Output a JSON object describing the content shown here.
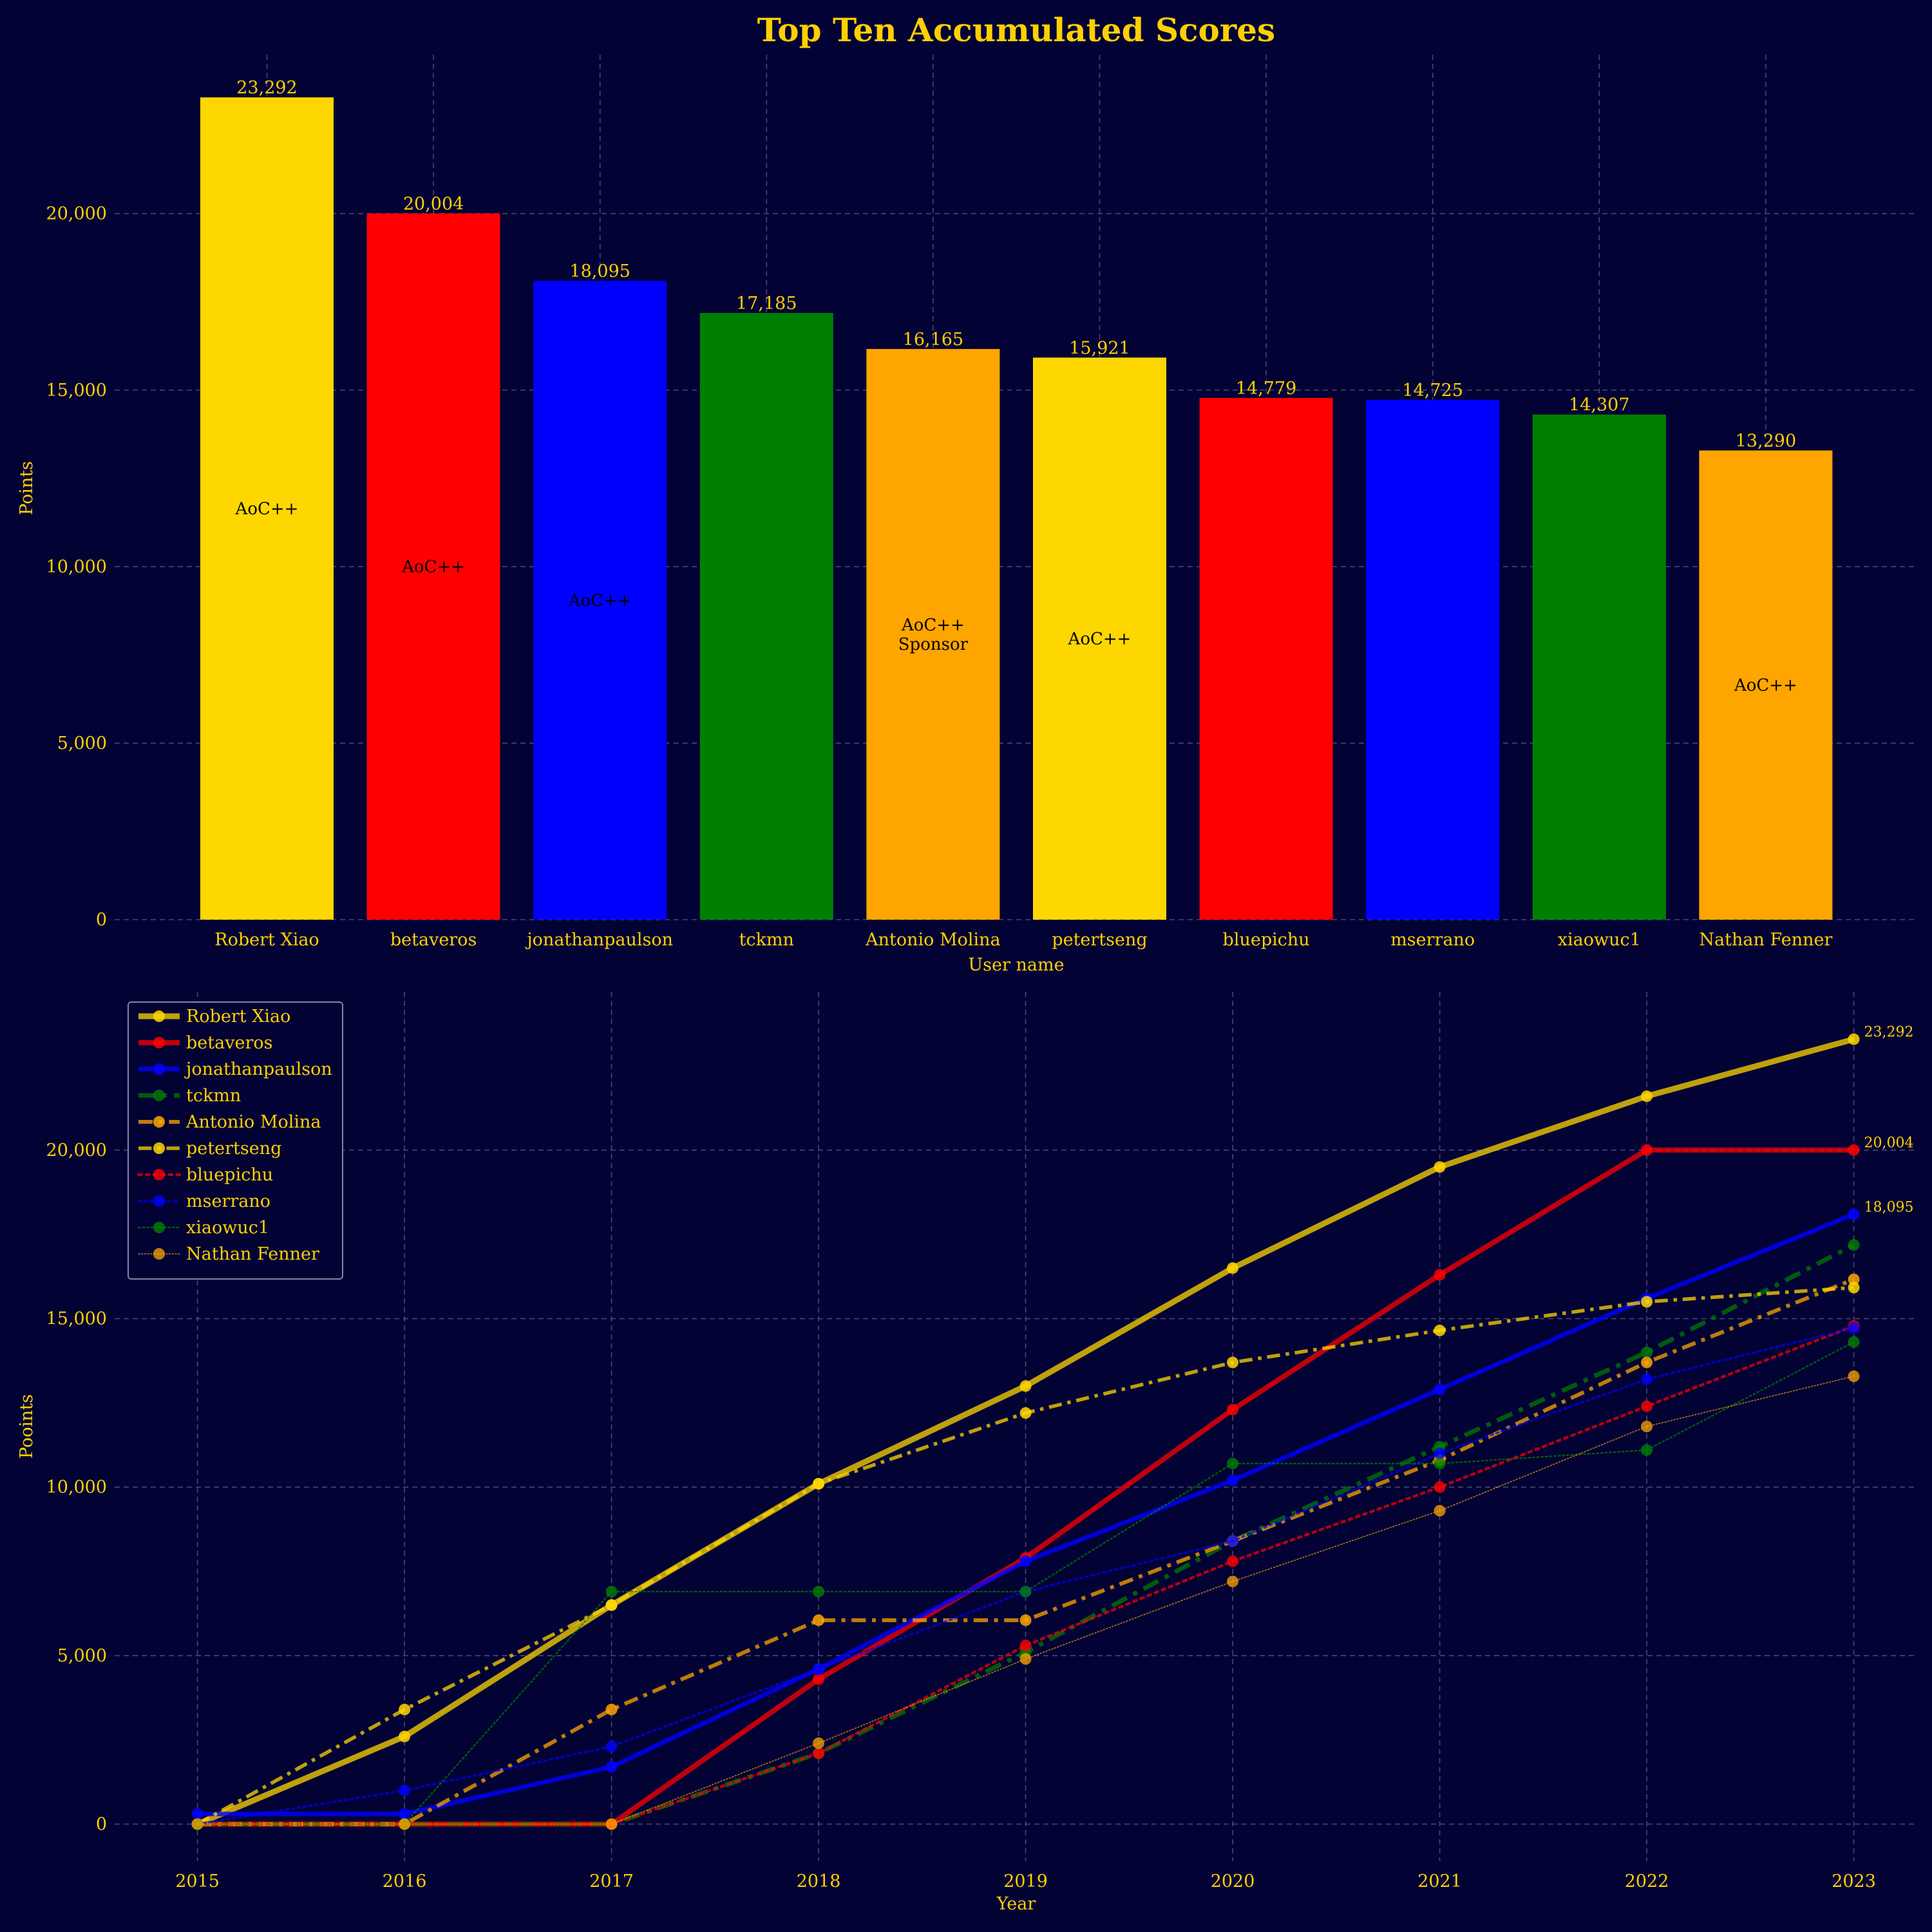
{
  "figure_title": "Top Ten Accumulated Scores",
  "colors": {
    "background": "#020235",
    "text": "#ffd000",
    "gold": "#ffd700",
    "red": "#ff0000",
    "blue": "#0000ff",
    "green": "#008000",
    "orange": "#ffa500"
  },
  "chart_data": [
    {
      "type": "bar",
      "xlabel": "User name",
      "ylabel": "Points",
      "ylim": [
        0,
        24500
      ],
      "yticks": [
        0,
        5000,
        10000,
        15000,
        20000
      ],
      "ytick_labels": [
        "0",
        "5,000",
        "10,000",
        "15,000",
        "20,000"
      ],
      "grid": true,
      "categories": [
        "Robert Xiao",
        "betaveros",
        "jonathanpaulson",
        "tckmn",
        "Antonio Molina",
        "petertseng",
        "bluepichu",
        "mserrano",
        "xiaowuc1",
        "Nathan Fenner"
      ],
      "values": [
        23292,
        20004,
        18095,
        17185,
        16165,
        15921,
        14779,
        14725,
        14307,
        13290
      ],
      "value_labels": [
        "23,292",
        "20,004",
        "18,095",
        "17,185",
        "16,165",
        "15,921",
        "14,779",
        "14,725",
        "14,307",
        "13,290"
      ],
      "bar_colors": [
        "#ffd700",
        "#ff0000",
        "#0000ff",
        "#008000",
        "#ffa500",
        "#ffd700",
        "#ff0000",
        "#0000ff",
        "#008000",
        "#ffa500"
      ],
      "bar_annotations": [
        [
          "AoC++"
        ],
        [
          "AoC++"
        ],
        [
          "AoC++"
        ],
        [],
        [
          "AoC++",
          "Sponsor"
        ],
        [
          "AoC++"
        ],
        [],
        [],
        [],
        [
          "AoC++"
        ]
      ]
    },
    {
      "type": "line",
      "xlabel": "Year",
      "ylabel": "Pooints",
      "x": [
        2015,
        2016,
        2017,
        2018,
        2019,
        2020,
        2021,
        2022,
        2023
      ],
      "xlim": [
        2014.6,
        2023.3
      ],
      "ylim": [
        -1100,
        24700
      ],
      "yticks": [
        0,
        5000,
        10000,
        15000,
        20000
      ],
      "ytick_labels": [
        "0",
        "5,000",
        "10,000",
        "15,000",
        "20,000"
      ],
      "grid": true,
      "legend_position": "upper-left",
      "series": [
        {
          "name": "Robert Xiao",
          "color": "#ffd700",
          "dash": "solid",
          "width": 9,
          "opacity": 0.75,
          "values": [
            0,
            2600,
            6500,
            10100,
            13000,
            16500,
            19500,
            21600,
            23292
          ]
        },
        {
          "name": "betaveros",
          "color": "#ff0000",
          "dash": "solid",
          "width": 8,
          "opacity": 0.75,
          "values": [
            0,
            0,
            0,
            4300,
            7900,
            12300,
            16300,
            20004,
            20004
          ]
        },
        {
          "name": "jonathanpaulson",
          "color": "#0000ff",
          "dash": "solid",
          "width": 7,
          "opacity": 0.8,
          "values": [
            300,
            300,
            1700,
            4600,
            7800,
            10200,
            12900,
            15600,
            18095
          ]
        },
        {
          "name": "tckmn",
          "color": "#008000",
          "dash": "dashdot",
          "width": 7,
          "opacity": 0.7,
          "values": [
            0,
            0,
            0,
            2100,
            5100,
            8400,
            11200,
            14000,
            17185
          ]
        },
        {
          "name": "Antonio Molina",
          "color": "#ffa500",
          "dash": "dashdot",
          "width": 6,
          "opacity": 0.75,
          "values": [
            0,
            0,
            3400,
            6050,
            6050,
            8400,
            10800,
            13700,
            16165
          ]
        },
        {
          "name": "petertseng",
          "color": "#ffd700",
          "dash": "dashdot",
          "width": 5.5,
          "opacity": 0.75,
          "values": [
            0,
            3400,
            6500,
            10100,
            12200,
            13700,
            14650,
            15500,
            15921
          ]
        },
        {
          "name": "bluepichu",
          "color": "#ff0000",
          "dash": "dotted",
          "width": 4.5,
          "opacity": 0.7,
          "values": [
            0,
            0,
            0,
            2100,
            5300,
            7800,
            10000,
            12400,
            14779
          ]
        },
        {
          "name": "mserrano",
          "color": "#0000ff",
          "dash": "dotted",
          "width": 3.5,
          "opacity": 0.7,
          "values": [
            0,
            1000,
            2300,
            4600,
            6900,
            8400,
            11000,
            13200,
            14725
          ]
        },
        {
          "name": "xiaowuc1",
          "color": "#008000",
          "dash": "dotted",
          "width": 2.5,
          "opacity": 0.7,
          "values": [
            0,
            0,
            6900,
            6900,
            6900,
            10700,
            10700,
            11100,
            14307
          ]
        },
        {
          "name": "Nathan Fenner",
          "color": "#ffa500",
          "dash": "dotted",
          "width": 1.8,
          "opacity": 0.65,
          "values": [
            0,
            0,
            0,
            2400,
            4900,
            7200,
            9300,
            11800,
            13290
          ]
        }
      ],
      "end_labels": [
        {
          "series": "Robert Xiao",
          "text": "23,292"
        },
        {
          "series": "betaveros",
          "text": "20,004"
        },
        {
          "series": "jonathanpaulson",
          "text": "18,095"
        }
      ]
    }
  ]
}
